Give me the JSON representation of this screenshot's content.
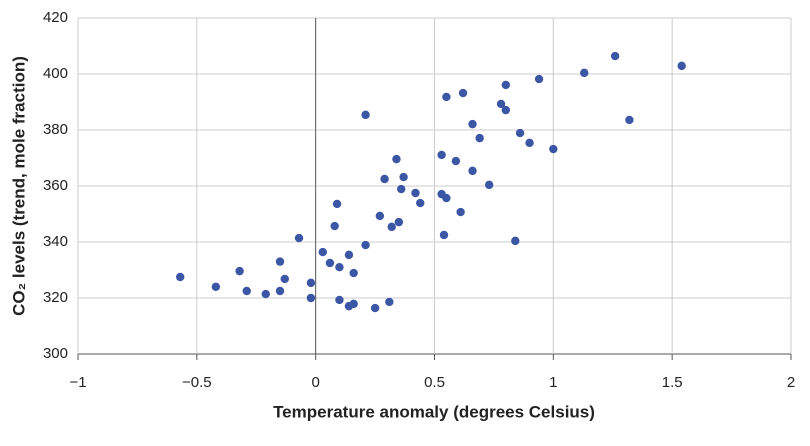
{
  "chart_data": {
    "type": "scatter",
    "xlabel": "Temperature anomaly (degrees Celsius)",
    "ylabel": "CO₂ levels (trend, mole fraction)",
    "color": "#3b56a5",
    "grid": true,
    "xlim": [
      -1,
      2
    ],
    "ylim": [
      300,
      420
    ],
    "xticks": [
      {
        "value": -1,
        "label": "−1"
      },
      {
        "value": -0.5,
        "label": "−0.5"
      },
      0,
      0.5,
      1,
      1.5,
      2
    ],
    "yticks": [
      300,
      320,
      340,
      360,
      380,
      400,
      420
    ],
    "x": [
      -0.57,
      -0.42,
      -0.32,
      -0.29,
      -0.21,
      -0.15,
      -0.15,
      -0.13,
      -0.07,
      -0.02,
      -0.02,
      0.03,
      0.06,
      0.08,
      0.09,
      0.1,
      0.1,
      0.14,
      0.14,
      0.16,
      0.16,
      0.21,
      0.21,
      0.25,
      0.27,
      0.29,
      0.31,
      0.32,
      0.34,
      0.35,
      0.36,
      0.37,
      0.42,
      0.44,
      0.53,
      0.53,
      0.54,
      0.55,
      0.55,
      0.59,
      0.61,
      0.62,
      0.66,
      0.66,
      0.69,
      0.73,
      0.78,
      0.8,
      0.8,
      0.84,
      0.86,
      0.9,
      0.94,
      1.0,
      1.13,
      1.26,
      1.32,
      1.54
    ],
    "values": [
      327.5,
      324,
      329.6,
      322.5,
      321.4,
      333,
      322.5,
      326.8,
      341.4,
      325.4,
      320,
      336.4,
      332.5,
      345.7,
      353.6,
      331,
      319.3,
      335.4,
      317.1,
      317.9,
      328.9,
      338.9,
      385.4,
      316.4,
      349.3,
      362.5,
      318.6,
      345.4,
      369.6,
      347.1,
      358.9,
      363.2,
      357.5,
      353.9,
      371.1,
      357.1,
      342.5,
      355.7,
      391.8,
      368.9,
      350.7,
      393.2,
      382.1,
      365.4,
      377.1,
      360.4,
      389.3,
      396.1,
      387.1,
      340.4,
      378.9,
      375.4,
      398.2,
      373.2,
      400.4,
      406.4,
      383.6,
      402.9
    ]
  }
}
